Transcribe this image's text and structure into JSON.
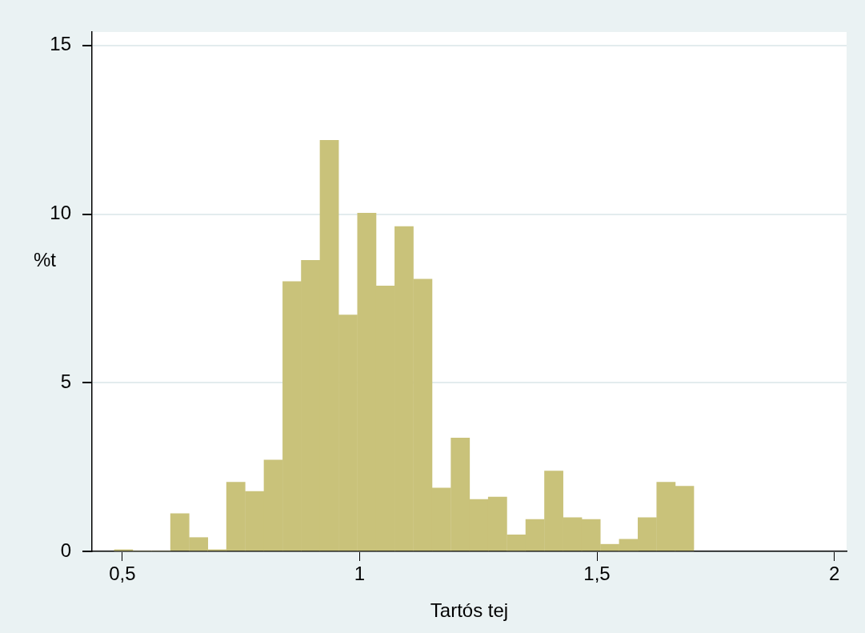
{
  "chart_data": {
    "type": "histogram",
    "xlabel": "Tartós tej",
    "ylabel": "%t",
    "bins": [
      0.483,
      0.522,
      0.562,
      0.601,
      0.641,
      0.68,
      0.719,
      0.759,
      0.798,
      0.838,
      0.877,
      0.916,
      0.956,
      0.995,
      1.035,
      1.074,
      1.113,
      1.153,
      1.192,
      1.232,
      1.271,
      1.31,
      1.35,
      1.389,
      1.429,
      1.468,
      1.507,
      1.547,
      1.586,
      1.626,
      1.665,
      1.704
    ],
    "values": [
      0.05,
      0,
      0,
      1.12,
      0.41,
      0.05,
      2.05,
      1.78,
      2.71,
      8.0,
      8.63,
      12.19,
      7.01,
      10.03,
      7.87,
      9.63,
      8.07,
      1.88,
      3.36,
      1.54,
      1.61,
      0.49,
      0.95,
      2.38,
      1.0,
      0.95,
      0.21,
      0.36,
      1.0,
      2.05,
      1.93
    ],
    "color": "#c9c27a",
    "xlim": [
      0.436,
      2.026
    ],
    "xticks": [
      {
        "value": 0.5,
        "label": "0,5"
      },
      1,
      {
        "value": 1.5,
        "label": "1,5"
      },
      2
    ],
    "ylim": [
      0,
      15.4
    ],
    "yticks": [
      0,
      5,
      10,
      15
    ],
    "grid": "y",
    "legend": false
  }
}
